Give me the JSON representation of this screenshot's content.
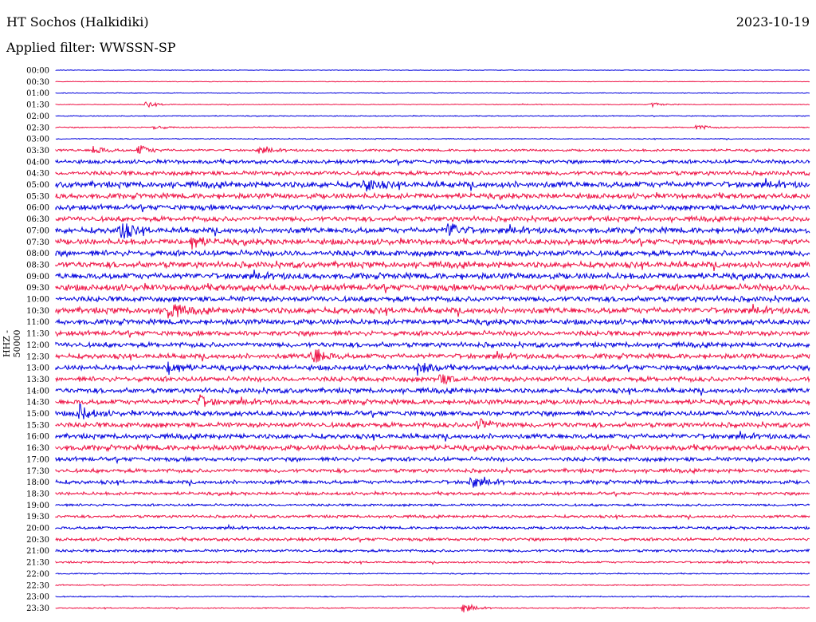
{
  "header": {
    "station": "HT Sochos (Halkidiki)",
    "date": "2023-10-19",
    "filter": "Applied filter: WWSSN-SP"
  },
  "axis": {
    "ylabel": "HHZ - 50000"
  },
  "colors": {
    "even_row": "#0000dd",
    "odd_row": "#ee1144"
  },
  "chart_data": {
    "type": "line",
    "title": "HT Sochos (Halkidiki)",
    "ylabel": "HHZ - 50000",
    "rows": [
      "00:00",
      "00:30",
      "01:00",
      "01:30",
      "02:00",
      "02:30",
      "03:00",
      "03:30",
      "04:00",
      "04:30",
      "05:00",
      "05:30",
      "06:00",
      "06:30",
      "07:00",
      "07:30",
      "08:00",
      "08:30",
      "09:00",
      "09:30",
      "10:00",
      "10:30",
      "11:00",
      "11:30",
      "12:00",
      "12:30",
      "13:00",
      "13:30",
      "14:00",
      "14:30",
      "15:00",
      "15:30",
      "16:00",
      "16:30",
      "17:00",
      "17:30",
      "18:00",
      "18:30",
      "19:00",
      "19:30",
      "20:00",
      "20:30",
      "21:00",
      "21:30",
      "22:00",
      "22:30",
      "23:00",
      "23:30"
    ],
    "noise_level": [
      0.3,
      0.3,
      0.4,
      0.4,
      0.5,
      0.6,
      0.5,
      1.2,
      2.0,
      2.2,
      3.2,
      2.8,
      2.8,
      2.6,
      3.0,
      3.0,
      3.0,
      3.2,
      3.2,
      3.4,
      2.8,
      3.2,
      2.8,
      2.6,
      2.6,
      2.6,
      2.6,
      2.6,
      2.6,
      2.6,
      2.6,
      2.6,
      2.6,
      2.8,
      2.2,
      2.0,
      2.0,
      1.6,
      1.2,
      1.4,
      1.4,
      1.6,
      1.4,
      1.0,
      0.6,
      0.6,
      0.6,
      0.6
    ],
    "events": [
      {
        "row": "01:30",
        "t": 0.12,
        "amp": 4
      },
      {
        "row": "01:30",
        "t": 0.79,
        "amp": 3
      },
      {
        "row": "02:30",
        "t": 0.13,
        "amp": 3
      },
      {
        "row": "02:30",
        "t": 0.85,
        "amp": 4
      },
      {
        "row": "03:30",
        "t": 0.05,
        "amp": 6
      },
      {
        "row": "03:30",
        "t": 0.11,
        "amp": 7
      },
      {
        "row": "03:30",
        "t": 0.27,
        "amp": 4
      },
      {
        "row": "05:00",
        "t": 0.41,
        "amp": 10
      },
      {
        "row": "07:00",
        "t": 0.085,
        "amp": 14
      },
      {
        "row": "07:00",
        "t": 0.52,
        "amp": 12
      },
      {
        "row": "07:30",
        "t": 0.18,
        "amp": 9
      },
      {
        "row": "10:30",
        "t": 0.15,
        "amp": 12
      },
      {
        "row": "12:30",
        "t": 0.34,
        "amp": 14
      },
      {
        "row": "13:00",
        "t": 0.15,
        "amp": 12
      },
      {
        "row": "13:00",
        "t": 0.48,
        "amp": 10
      },
      {
        "row": "13:30",
        "t": 0.51,
        "amp": 6
      },
      {
        "row": "14:30",
        "t": 0.19,
        "amp": 8
      },
      {
        "row": "15:00",
        "t": 0.03,
        "amp": 12
      },
      {
        "row": "15:30",
        "t": 0.56,
        "amp": 10
      },
      {
        "row": "18:00",
        "t": 0.55,
        "amp": 8
      },
      {
        "row": "23:30",
        "t": 0.54,
        "amp": 6
      }
    ]
  }
}
